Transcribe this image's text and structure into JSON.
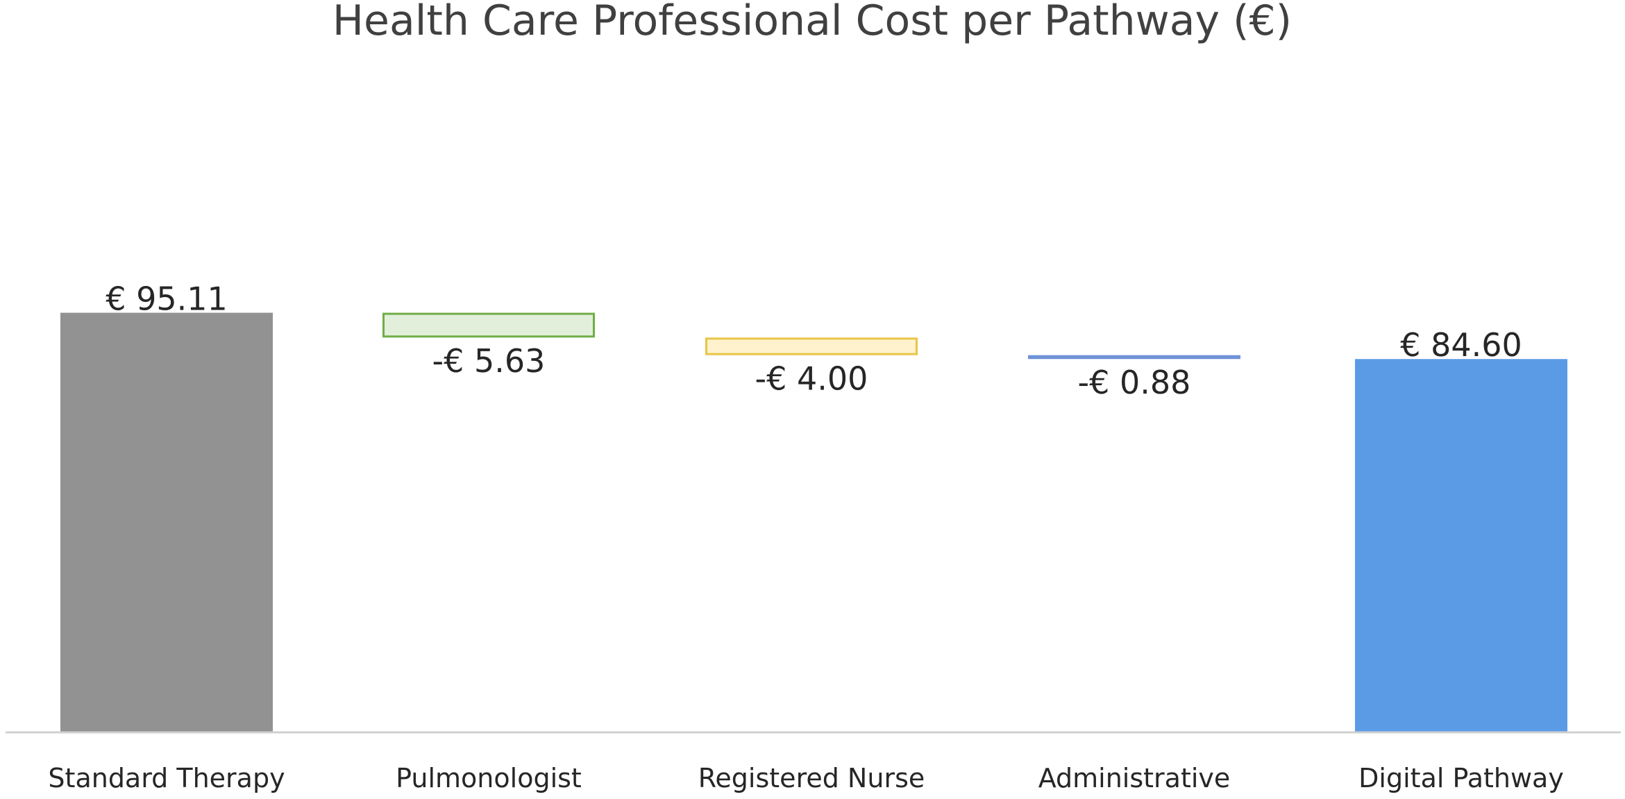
{
  "chart_data": {
    "type": "bar",
    "subtype": "waterfall",
    "title": "Health Care Professional Cost per Pathway (€)",
    "xlabel": "",
    "ylabel": "",
    "ylim": [
      0,
      95.11
    ],
    "grid": false,
    "legend": "none",
    "categories": [
      "Standard Therapy",
      "Pulmonologist",
      "Registered Nurse",
      "Administrative",
      "Digital Pathway"
    ],
    "values": [
      95.11,
      -5.63,
      -4.0,
      -0.88,
      84.6
    ],
    "kinds": [
      "total",
      "delta",
      "delta",
      "delta",
      "total"
    ],
    "data_labels": [
      "€ 95.11",
      "-€ 5.63",
      "-€ 4.00",
      "-€ 0.88",
      "€ 84.60"
    ],
    "colors": {
      "fills": [
        "#929292",
        "#e2efda",
        "#fff2cc",
        "#dae3f3",
        "#5b9be6"
      ],
      "strokes": [
        "#929292",
        "#70ad47",
        "#e8c547",
        "#6f93d8",
        "#5b9be6"
      ],
      "axis": "#d0d0d0"
    }
  }
}
